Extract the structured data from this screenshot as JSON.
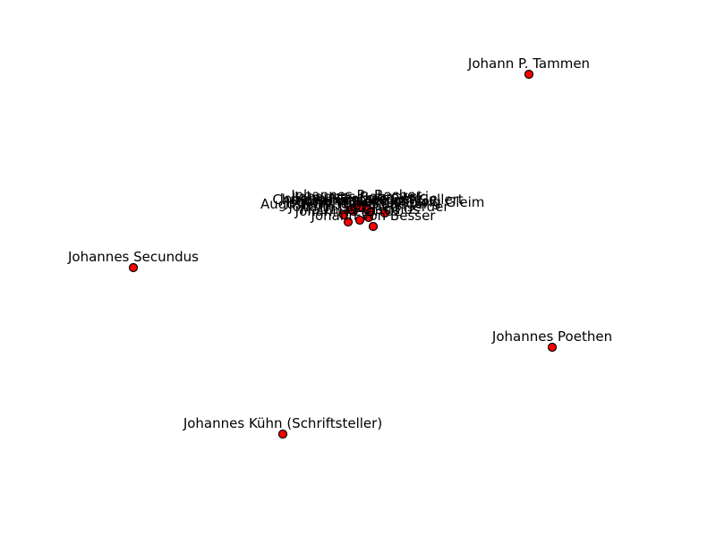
{
  "colors": {
    "node_fill": "#ff0000",
    "node_stroke": "#000000",
    "label": "#000000",
    "background": "#ffffff"
  },
  "nodes": [
    {
      "id": "n1",
      "label": "Johann P. Tammen"
    },
    {
      "id": "n2",
      "label": "Johannes Secundus"
    },
    {
      "id": "n3",
      "label": "Johannes Poethen"
    },
    {
      "id": "n4",
      "label": "Johannes Kühn (Schriftsteller)"
    },
    {
      "id": "n5",
      "label": "Johann von Besser"
    },
    {
      "id": "n6",
      "label": "Johannes Bobrowski"
    },
    {
      "id": "n7",
      "label": "Johannes R. Becher"
    },
    {
      "id": "n8",
      "label": "Christian Fürchtegott Gellert"
    },
    {
      "id": "n9",
      "label": "Johann Wilhelm Ludwig Gleim"
    },
    {
      "id": "n10",
      "label": "August Wilhelm Schlegel"
    },
    {
      "id": "n11",
      "label": "Johannes Schlaf"
    },
    {
      "id": "n12",
      "label": "Johann Gottfried Herder"
    },
    {
      "id": "n13",
      "label": "Matthias Claudius"
    },
    {
      "id": "n14",
      "label": "Johann Peter Uz"
    },
    {
      "id": "n15",
      "label": "Johann Heinrich Voß"
    },
    {
      "id": "n16",
      "label": "Johann Nikolaus Götz"
    }
  ]
}
